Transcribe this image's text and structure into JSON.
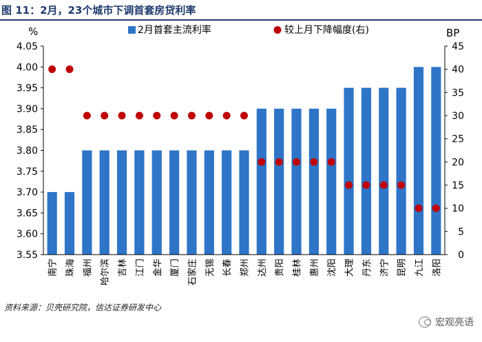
{
  "figure_title": "图 11：2月，23个城市下调首套房贷利率",
  "source_note": "资料来源：贝壳研究院，信达证券研发中心",
  "watermark": "宏观亮语",
  "colors": {
    "bar": "#2e75c8",
    "dot": "#c00000",
    "title": "#1f3b6e"
  },
  "chart_data": {
    "type": "bar",
    "categories": [
      "南宁",
      "珠海",
      "福州",
      "哈尔滨",
      "吉林",
      "江门",
      "金华",
      "厦门",
      "石家庄",
      "无锡",
      "长春",
      "郑州",
      "达州",
      "贵阳",
      "桂林",
      "惠州",
      "沈阳",
      "大理",
      "丹东",
      "济宁",
      "昆明",
      "九江",
      "洛阳"
    ],
    "series": [
      {
        "name": "2月首套主流利率",
        "type": "bar",
        "axis": "left",
        "values": [
          3.7,
          3.7,
          3.8,
          3.8,
          3.8,
          3.8,
          3.8,
          3.8,
          3.8,
          3.8,
          3.8,
          3.8,
          3.9,
          3.9,
          3.9,
          3.9,
          3.9,
          3.95,
          3.95,
          3.95,
          3.95,
          4.0,
          4.0
        ]
      },
      {
        "name": "较上月下降幅度(右)",
        "type": "scatter",
        "axis": "right",
        "values": [
          40,
          40,
          30,
          30,
          30,
          30,
          30,
          30,
          30,
          30,
          30,
          30,
          20,
          20,
          20,
          20,
          20,
          15,
          15,
          15,
          15,
          10,
          10
        ]
      }
    ],
    "y_left": {
      "label": "%",
      "min": 3.55,
      "max": 4.05,
      "ticks": [
        "3.55",
        "3.60",
        "3.65",
        "3.70",
        "3.75",
        "3.80",
        "3.85",
        "3.90",
        "3.95",
        "4.00",
        "4.05"
      ]
    },
    "y_right": {
      "label": "BP",
      "min": 0,
      "max": 45,
      "ticks": [
        "0",
        "5",
        "10",
        "15",
        "20",
        "25",
        "30",
        "35",
        "40",
        "45"
      ]
    },
    "grid": false,
    "legend_position": "top"
  }
}
